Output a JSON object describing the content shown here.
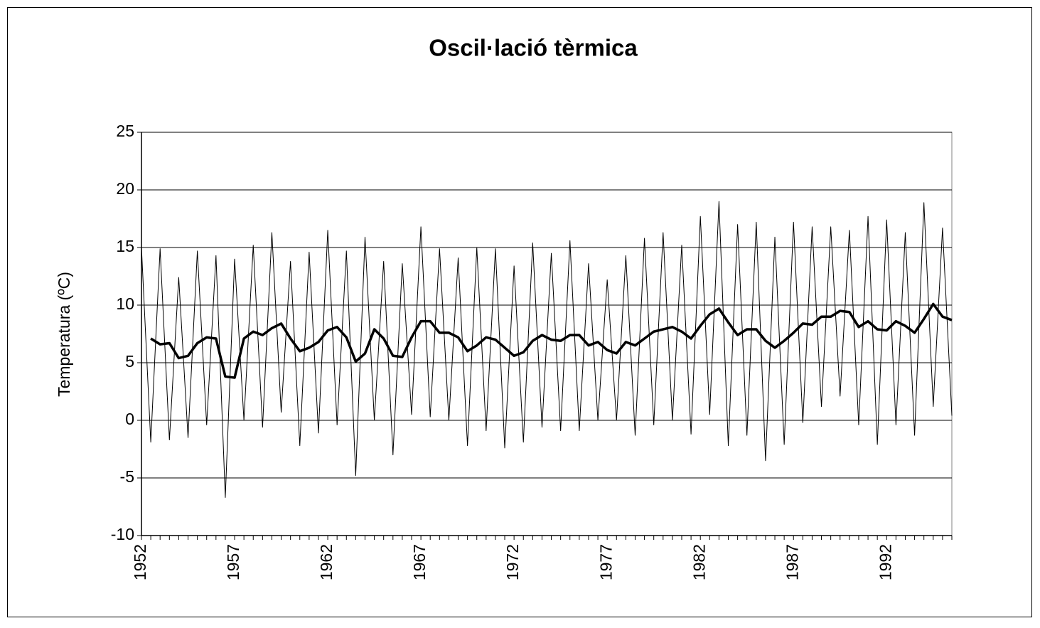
{
  "chart_data": {
    "type": "line",
    "title": "Oscil·lació tèrmica",
    "y_label": "Temperatura (ºC)",
    "categories": [
      "1952",
      null,
      null,
      null,
      null,
      null,
      null,
      null,
      null,
      null,
      "1957",
      null,
      null,
      null,
      null,
      null,
      null,
      null,
      null,
      null,
      "1962",
      null,
      null,
      null,
      null,
      null,
      null,
      null,
      null,
      null,
      "1967",
      null,
      null,
      null,
      null,
      null,
      null,
      null,
      null,
      null,
      "1972",
      null,
      null,
      null,
      null,
      null,
      null,
      null,
      null,
      null,
      "1977",
      null,
      null,
      null,
      null,
      null,
      null,
      null,
      null,
      null,
      "1982",
      null,
      null,
      null,
      null,
      null,
      null,
      null,
      null,
      null,
      "1987",
      null,
      null,
      null,
      null,
      null,
      null,
      null,
      null,
      null,
      "1992",
      null,
      null,
      null,
      null,
      null,
      null,
      null
    ],
    "series": [
      {
        "color": "#000000",
        "width": 1,
        "values": [
          15,
          -1.9,
          14.9,
          -1.7,
          12.4,
          -1.5,
          14.7,
          -0.4,
          14.3,
          -6.7,
          14.0,
          0.0,
          15.2,
          -0.6,
          16.3,
          0.7,
          13.8,
          -2.2,
          14.6,
          -1.1,
          16.5,
          -0.4,
          14.7,
          -4.8,
          15.9,
          0.0,
          13.8,
          -3.0,
          13.6,
          0.5,
          16.8,
          0.3,
          14.9,
          0.0,
          14.1,
          -2.2,
          15.0,
          -0.9,
          14.9,
          -2.4,
          13.4,
          -1.9,
          15.4,
          -0.6,
          14.5,
          -0.9,
          15.6,
          -0.9,
          13.6,
          0.0,
          12.2,
          0.0,
          14.3,
          -1.3,
          15.8,
          -0.4,
          16.3,
          0.0,
          15.2,
          -1.2,
          17.7,
          0.5,
          19.0,
          -2.2,
          17.0,
          -1.3,
          17.2,
          -3.5,
          15.9,
          -2.1,
          17.2,
          -0.2,
          16.8,
          1.2,
          16.8,
          2.1,
          16.5,
          -0.4,
          17.7,
          -2.1,
          17.4,
          -0.4,
          16.3,
          -1.3,
          18.9,
          1.2,
          16.7,
          0.4
        ]
      },
      {
        "color": "#000000",
        "width": 3.5,
        "values": [
          null,
          7.1,
          6.6,
          6.7,
          5.4,
          5.6,
          6.7,
          7.2,
          7.1,
          3.8,
          3.7,
          7.1,
          7.7,
          7.4,
          8.0,
          8.4,
          7.1,
          6.0,
          6.3,
          6.8,
          7.8,
          8.1,
          7.2,
          5.1,
          5.8,
          7.9,
          7.1,
          5.6,
          5.5,
          7.2,
          8.6,
          8.6,
          7.6,
          7.6,
          7.2,
          6.0,
          6.5,
          7.2,
          7.0,
          6.3,
          5.6,
          5.9,
          6.9,
          7.4,
          7.0,
          6.9,
          7.4,
          7.4,
          6.5,
          6.8,
          6.1,
          5.8,
          6.8,
          6.5,
          7.1,
          7.7,
          7.9,
          8.1,
          7.7,
          7.1,
          8.2,
          9.2,
          9.7,
          8.5,
          7.4,
          7.9,
          7.9,
          6.9,
          6.3,
          6.9,
          7.6,
          8.4,
          8.3,
          9.0,
          9.0,
          9.5,
          9.4,
          8.1,
          8.6,
          7.9,
          7.8,
          8.6,
          8.2,
          7.6,
          8.8,
          10.1,
          9.0,
          8.7
        ]
      }
    ],
    "ylim": [
      -10,
      25
    ],
    "yticks": [
      -10,
      -5,
      0,
      5,
      10,
      15,
      20,
      25
    ],
    "grid": true
  }
}
